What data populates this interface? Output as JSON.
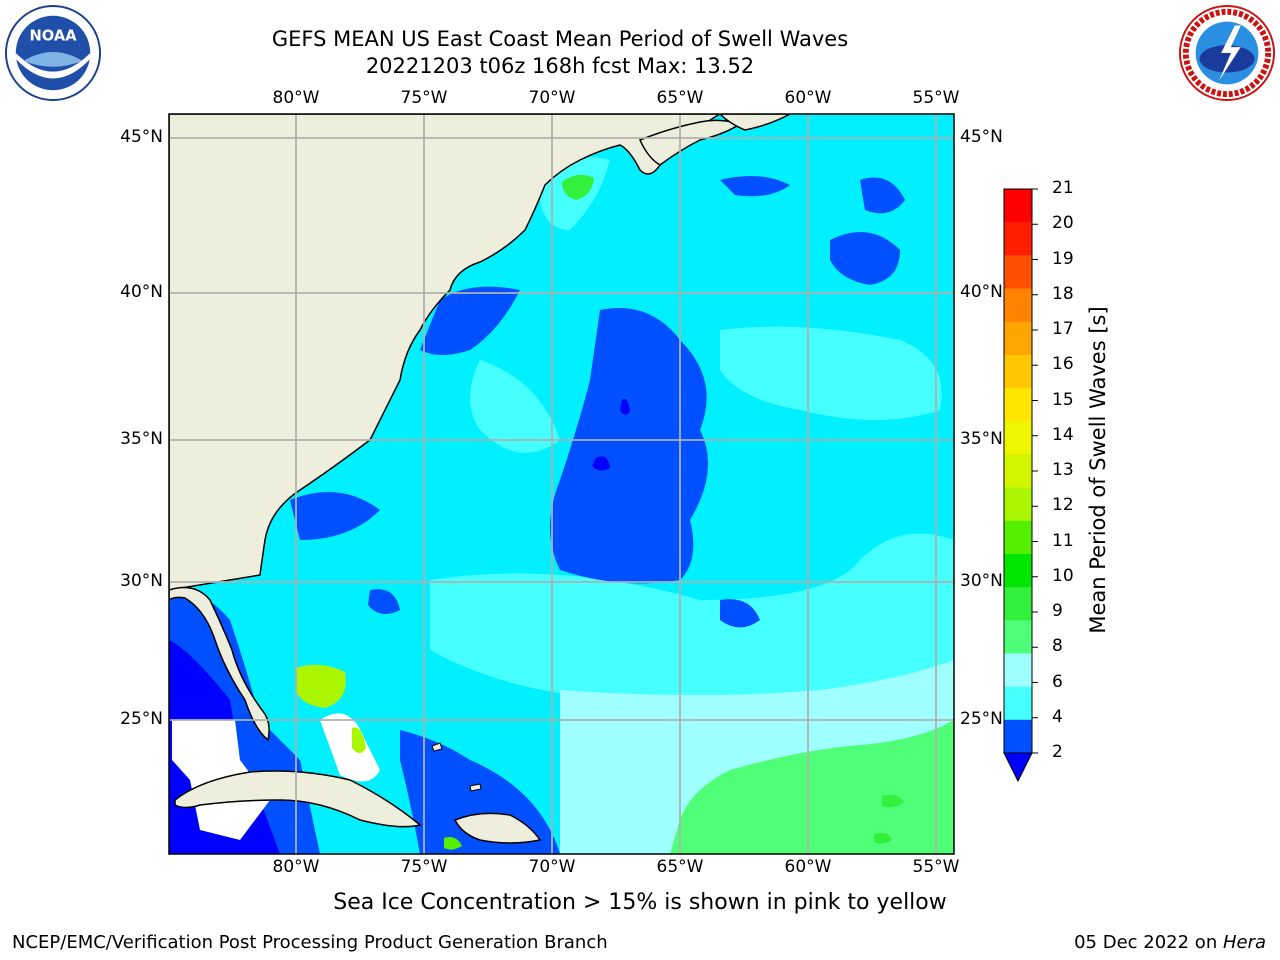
{
  "title": {
    "line1": "GEFS MEAN US East Coast Mean Period of Swell Waves",
    "line2": "20221203 t06z 168h fcst   Max: 13.52"
  },
  "logos": {
    "left": {
      "icon": "noaa-logo",
      "text": "NOAA"
    },
    "right": {
      "icon": "nws-logo",
      "text": "NATIONAL WEATHER SERVICE"
    }
  },
  "map": {
    "lon_labels": [
      "80°W",
      "75°W",
      "70°W",
      "65°W",
      "60°W",
      "55°W"
    ],
    "lat_labels": [
      "45°N",
      "40°N",
      "35°N",
      "30°N",
      "25°N"
    ],
    "lon_range": [
      "85°W",
      "54.3°W"
    ],
    "lat_range": [
      "20.5°N",
      "45.8°N"
    ],
    "land_color": "#eeeedc",
    "grid": "on"
  },
  "colorbar": {
    "label": "Mean Period of Swell Waves [s]",
    "ticks": [
      "2",
      "4",
      "6",
      "8",
      "9",
      "10",
      "11",
      "12",
      "13",
      "14",
      "15",
      "16",
      "17",
      "18",
      "19",
      "20",
      "21"
    ],
    "colors": [
      "#0050ff",
      "#00f0ff",
      "#46ffff",
      "#a0ffff",
      "#50ff78",
      "#32f03c",
      "#00e600",
      "#55f000",
      "#aaf500",
      "#d2f500",
      "#f0f500",
      "#ffe600",
      "#ffc800",
      "#ffa500",
      "#ff8200",
      "#ff5000",
      "#ff1e00",
      "#ff0000"
    ],
    "under_color": "#0000ff",
    "extend": "min"
  },
  "note": "Sea Ice Concentration > 15% is shown in pink to yellow",
  "footer": {
    "left": "NCEP/EMC/Verification Post Processing Product Generation Branch",
    "date": "05 Dec 2022 on ",
    "machine": "Hera"
  }
}
